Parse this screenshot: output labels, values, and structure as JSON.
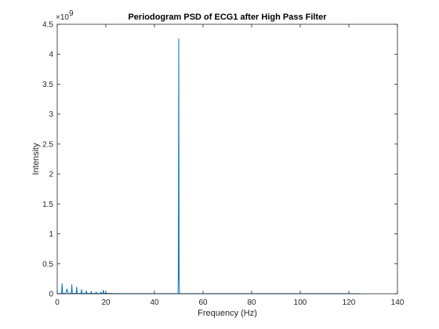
{
  "chart_data": {
    "type": "line",
    "title": "Periodogram PSD of ECG1 after High Pass Filter",
    "xlabel": "Frequency (Hz)",
    "ylabel": "Intensity",
    "y_multiplier_label": "×10",
    "y_multiplier_exponent": "9",
    "xlim": [
      0,
      140
    ],
    "ylim": [
      0,
      4.5
    ],
    "y_scale_factor": 1000000000,
    "x_ticks": [
      0,
      20,
      40,
      60,
      80,
      100,
      120,
      140
    ],
    "x_tick_labels": [
      "0",
      "20",
      "40",
      "60",
      "80",
      "100",
      "120",
      "140"
    ],
    "y_ticks": [
      0,
      0.5,
      1,
      1.5,
      2,
      2.5,
      3,
      3.5,
      4,
      4.5
    ],
    "y_tick_labels": [
      "0",
      "0.5",
      "1",
      "1.5",
      "2",
      "2.5",
      "3",
      "3.5",
      "4",
      "4.5"
    ],
    "grid": false,
    "line_color": "#0072bd",
    "series": [
      {
        "x": [
          0,
          1.8,
          2.0,
          2.2,
          3.5,
          4.0,
          4.5,
          5.8,
          6.0,
          6.2,
          7.8,
          8.0,
          8.2,
          9.8,
          10.0,
          10.2,
          11.8,
          12.0,
          12.2,
          13.8,
          14.0,
          14.2,
          15.8,
          16.0,
          16.2,
          17.8,
          18.0,
          18.2,
          18.8,
          19.0,
          19.2,
          19.8,
          20.0,
          20.2,
          21.8,
          22.0,
          22.2,
          24.0,
          30.0,
          40.0,
          49.7,
          49.85,
          50.0,
          50.15,
          50.3,
          60.0,
          80.0,
          100.0,
          120.0,
          125.0
        ],
        "y": [
          0.0,
          0.005,
          0.17,
          0.005,
          0.005,
          0.08,
          0.005,
          0.005,
          0.15,
          0.005,
          0.005,
          0.11,
          0.005,
          0.005,
          0.07,
          0.005,
          0.005,
          0.05,
          0.005,
          0.005,
          0.04,
          0.005,
          0.005,
          0.03,
          0.005,
          0.005,
          0.03,
          0.005,
          0.005,
          0.06,
          0.005,
          0.005,
          0.02,
          0.005,
          0.005,
          0.01,
          0.004,
          0.003,
          0.002,
          0.002,
          0.002,
          0.35,
          4.26,
          0.35,
          0.002,
          0.001,
          0.001,
          0.001,
          0.001,
          0.0
        ]
      }
    ]
  }
}
